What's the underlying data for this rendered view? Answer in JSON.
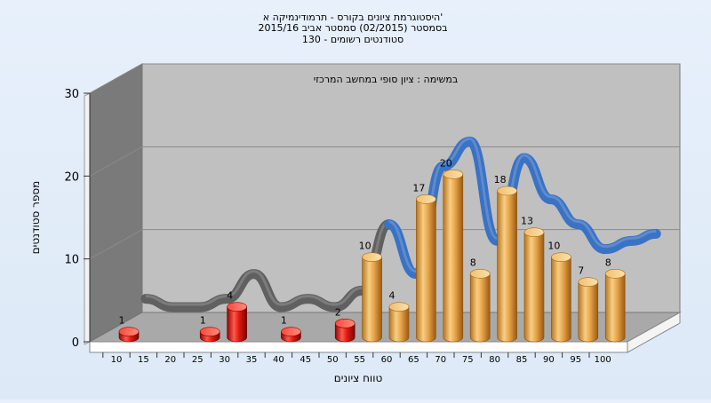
{
  "chart_data": {
    "type": "bar",
    "title_lines": [
      "היסטוגרמת ציונים בקורס - תרמודינמיקה א'",
      "בסמסטר  (02/2015)  סמסטר אביב 2015/16",
      "סטודנטים רשומים - 130"
    ],
    "annotation": "במשימה : ציון סופי במחשב המרכזי",
    "xlabel": "טווח ציונים",
    "ylabel": "מספר סטודנטים",
    "x_ticks": [
      10,
      15,
      20,
      25,
      30,
      35,
      40,
      45,
      50,
      55,
      60,
      65,
      70,
      75,
      80,
      85,
      90,
      95,
      100
    ],
    "y_ticks": [
      0,
      10,
      20,
      30
    ],
    "ylim": [
      0,
      30
    ],
    "bars": [
      {
        "x": 10,
        "value": 1,
        "color": "red"
      },
      {
        "x": 15,
        "value": 0,
        "color": "red"
      },
      {
        "x": 20,
        "value": 0,
        "color": "red"
      },
      {
        "x": 25,
        "value": 1,
        "color": "red"
      },
      {
        "x": 30,
        "value": 4,
        "color": "red"
      },
      {
        "x": 35,
        "value": 0,
        "color": "red"
      },
      {
        "x": 40,
        "value": 1,
        "color": "red"
      },
      {
        "x": 45,
        "value": 0,
        "color": "red"
      },
      {
        "x": 50,
        "value": 2,
        "color": "red"
      },
      {
        "x": 55,
        "value": 10,
        "color": "gold"
      },
      {
        "x": 60,
        "value": 4,
        "color": "gold"
      },
      {
        "x": 65,
        "value": 17,
        "color": "gold"
      },
      {
        "x": 70,
        "value": 20,
        "color": "gold"
      },
      {
        "x": 75,
        "value": 8,
        "color": "gold"
      },
      {
        "x": 80,
        "value": 18,
        "color": "gold"
      },
      {
        "x": 85,
        "value": 13,
        "color": "gold"
      },
      {
        "x": 90,
        "value": 10,
        "color": "gold"
      },
      {
        "x": 95,
        "value": 7,
        "color": "gold"
      },
      {
        "x": 100,
        "value": 8,
        "color": "gold"
      }
    ],
    "grid": true,
    "colors": {
      "fail_bar": "#d11414",
      "pass_bar": "#e2a03e",
      "curve_fail": "#606060",
      "curve_pass": "#3a72c4",
      "plot_back": "#c0c0c0",
      "plot_left_wall": "#7a7a7a",
      "plot_floor": "#a8a8a8"
    }
  }
}
